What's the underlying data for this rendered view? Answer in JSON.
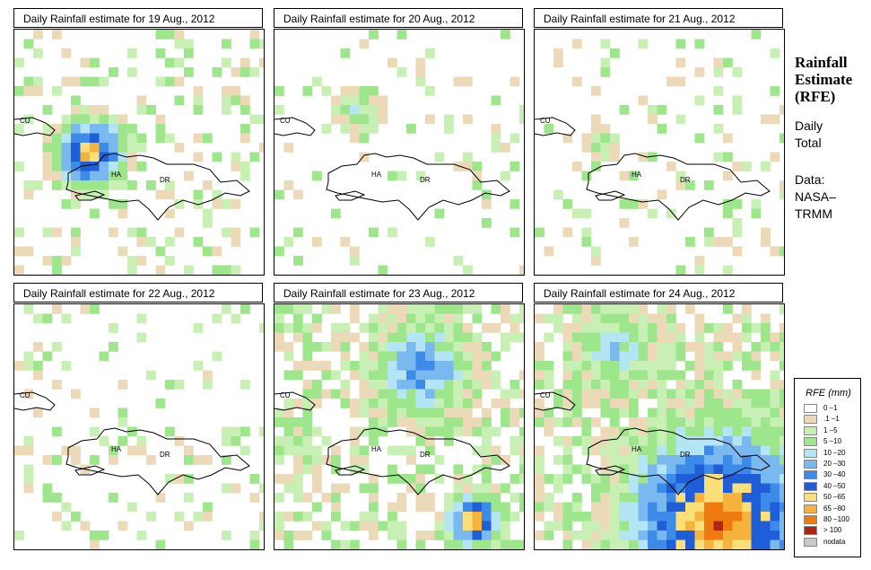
{
  "panels": [
    {
      "title": "Daily Rainfall estimate for  19 Aug., 2012",
      "labels": {
        "cu": "CU",
        "ha": "HA",
        "dr": "DR"
      },
      "rain": {
        "seed": 11,
        "density": 0.26,
        "hotspots": [
          {
            "c": 19,
            "r": 28,
            "rad": 5,
            "peak": 9
          }
        ]
      }
    },
    {
      "title": "Daily Rainfall estimate for  20 Aug., 2012",
      "labels": {
        "cu": "CU",
        "ha": "HA",
        "dr": "DR"
      },
      "rain": {
        "seed": 23,
        "density": 0.12,
        "hotspots": [
          {
            "c": 21,
            "r": 18,
            "rad": 3,
            "peak": 3
          }
        ]
      }
    },
    {
      "title": "Daily Rainfall estimate for  21 Aug., 2012",
      "labels": {
        "cu": "CU",
        "ha": "HA",
        "dr": "DR"
      },
      "rain": {
        "seed": 37,
        "density": 0.15,
        "hotspots": [
          {
            "c": 17,
            "r": 26,
            "rad": 2,
            "peak": 3
          }
        ]
      }
    },
    {
      "title": "Daily Rainfall estimate for  22 Aug., 2012",
      "labels": {
        "cu": "CU",
        "ha": "HA",
        "dr": "DR"
      },
      "rain": {
        "seed": 41,
        "density": 0.18,
        "hotspots": []
      }
    },
    {
      "title": "Daily Rainfall estimate for  23 Aug., 2012",
      "labels": {
        "cu": "CU",
        "ha": "HA",
        "dr": "DR"
      },
      "rain": {
        "seed": 53,
        "density": 0.55,
        "hotspots": [
          {
            "c": 38,
            "r": 14,
            "rad": 7,
            "peak": 6
          },
          {
            "c": 52,
            "r": 50,
            "rad": 4,
            "peak": 9
          }
        ]
      }
    },
    {
      "title": "Daily Rainfall estimate for  24 Aug., 2012",
      "labels": {
        "cu": "CU",
        "ha": "HA",
        "dr": "DR"
      },
      "rain": {
        "seed": 67,
        "density": 0.65,
        "hotspots": [
          {
            "c": 48,
            "r": 50,
            "rad": 14,
            "peak": 10
          },
          {
            "c": 20,
            "r": 10,
            "rad": 6,
            "peak": 4
          }
        ]
      }
    }
  ],
  "side": {
    "title_lines": [
      "Rainfall",
      "Estimate",
      "(RFE)"
    ],
    "period_lines": [
      "Daily",
      "Total"
    ],
    "source_lines": [
      "Data:",
      "NASA–",
      "TRMM"
    ]
  },
  "legend": {
    "title": "RFE (mm)",
    "items": [
      {
        "label": "0 –1",
        "color": "#ffffff"
      },
      {
        "label": ".1 –1",
        "color": "#ecd9b8"
      },
      {
        "label": "1 –5",
        "color": "#c8f0b4"
      },
      {
        "label": "5 –10",
        "color": "#9ee68c"
      },
      {
        "label": "10 –20",
        "color": "#b3e5f5"
      },
      {
        "label": "20 –30",
        "color": "#7ab8f0"
      },
      {
        "label": "30 –40",
        "color": "#3d8be8"
      },
      {
        "label": "40 –50",
        "color": "#1e5ed8"
      },
      {
        "label": "50 –65",
        "color": "#fbe07a"
      },
      {
        "label": "65 –80",
        "color": "#f5b23c"
      },
      {
        "label": "80 –100",
        "color": "#ef7a10"
      },
      {
        "label": "> 100",
        "color": "#b02418"
      },
      {
        "label": "nodata",
        "color": "#c8c8c8"
      }
    ]
  }
}
